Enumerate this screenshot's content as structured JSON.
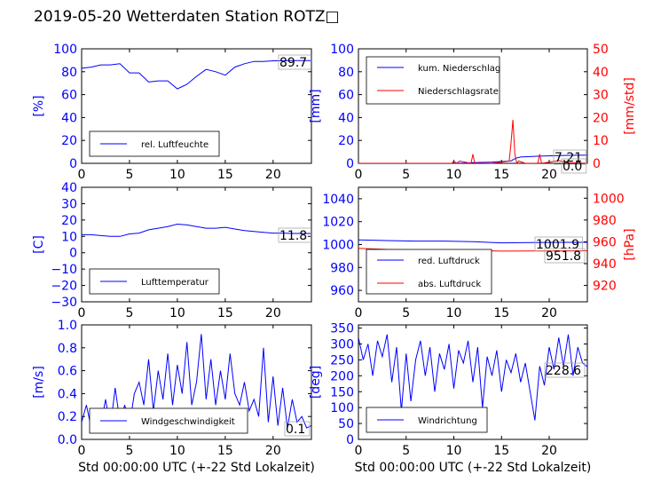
{
  "page": {
    "title": "2019-05-20 Wetterdaten Station ROTZ□"
  },
  "colors": {
    "axis_left": "#0000ff",
    "axis_right": "#ff0000",
    "series_blue": "#0000ff",
    "series_red": "#ff0000",
    "frame": "#000000"
  },
  "chart_data": [
    {
      "type": "line",
      "panel": "top-left",
      "xlim": [
        0,
        24
      ],
      "xticks": [
        "0",
        "5",
        "10",
        "15",
        "20"
      ],
      "ylabel": "[%]",
      "ylim": [
        0,
        100
      ],
      "yticks": [
        "0",
        "20",
        "40",
        "60",
        "80",
        "100"
      ],
      "legend": {
        "placement": "lower-left",
        "entries": [
          "rel. Luftfeuchte"
        ]
      },
      "annotations": [
        "89.7"
      ],
      "series": [
        {
          "name": "rel. Luftfeuchte",
          "color": "#0000ff",
          "axis": "left",
          "x": [
            0,
            1,
            2,
            3,
            4,
            5,
            6,
            7,
            8,
            9,
            10,
            11,
            12,
            13,
            14,
            15,
            16,
            17,
            18,
            19,
            20,
            21,
            22,
            23,
            24
          ],
          "values": [
            83,
            84,
            86,
            86,
            87,
            79,
            79,
            71,
            72,
            72,
            65,
            69,
            76,
            82,
            80,
            77,
            84,
            87,
            89,
            89,
            89.5,
            89.6,
            89.7,
            89.7,
            89.7
          ]
        }
      ]
    },
    {
      "type": "line",
      "panel": "top-right",
      "xlim": [
        0,
        24
      ],
      "xticks": [
        "0",
        "5",
        "10",
        "15",
        "20"
      ],
      "ylabel": "[mm]",
      "ylim": [
        0,
        100
      ],
      "yticks": [
        "0",
        "20",
        "40",
        "60",
        "80",
        "100"
      ],
      "ylabel_right": "[mm/std]",
      "ylim_right": [
        0,
        50
      ],
      "yticks_right": [
        "0",
        "10",
        "20",
        "30",
        "40",
        "50"
      ],
      "legend": {
        "placement": "top-left",
        "entries": [
          "kum. Niederschlag",
          "Niederschlagsrate"
        ]
      },
      "annotations": [
        "7.21",
        "0.0"
      ],
      "series": [
        {
          "name": "kum. Niederschlag",
          "color": "#0000ff",
          "axis": "left",
          "x": [
            0,
            10,
            11,
            12,
            14,
            16,
            16.5,
            17,
            19,
            22,
            24
          ],
          "values": [
            0,
            0,
            0.2,
            0.6,
            1.1,
            2.2,
            4.5,
            5.5,
            6.3,
            7.0,
            7.21
          ]
        },
        {
          "name": "Niederschlagsrate",
          "color": "#ff0000",
          "axis": "right",
          "x": [
            0,
            9.8,
            10,
            10.3,
            10.6,
            11.8,
            12,
            12.2,
            14,
            15.8,
            16,
            16.2,
            16.4,
            16.6,
            16.8,
            17.5,
            18.8,
            19,
            19.2,
            21,
            22,
            24
          ],
          "values": [
            0,
            0,
            1,
            0,
            1,
            0,
            4,
            0,
            0,
            1,
            9,
            19,
            4,
            0,
            1,
            0,
            0,
            4,
            0,
            1.2,
            0.3,
            0
          ]
        }
      ]
    },
    {
      "type": "line",
      "panel": "middle-left",
      "xlim": [
        0,
        24
      ],
      "xticks": [
        "0",
        "5",
        "10",
        "15",
        "20"
      ],
      "ylabel": "[C]",
      "ylim": [
        -30,
        40
      ],
      "yticks": [
        "−30",
        "−20",
        "−10",
        "0",
        "10",
        "20",
        "30",
        "40"
      ],
      "legend": {
        "placement": "lower-left",
        "entries": [
          "Lufttemperatur"
        ]
      },
      "annotations": [
        "11.8"
      ],
      "series": [
        {
          "name": "Lufttemperatur",
          "color": "#0000ff",
          "axis": "left",
          "x": [
            0,
            1,
            2,
            3,
            4,
            5,
            6,
            7,
            8,
            9,
            10,
            11,
            12,
            13,
            14,
            15,
            16,
            17,
            18,
            19,
            20,
            21,
            22,
            23,
            24
          ],
          "values": [
            11,
            11,
            10.5,
            10,
            10,
            11.5,
            12,
            14,
            15,
            16,
            17.5,
            17,
            16,
            15,
            15,
            15.5,
            14.5,
            13.5,
            13,
            12.5,
            12,
            12,
            11.8,
            11.8,
            11.8
          ]
        }
      ]
    },
    {
      "type": "line",
      "panel": "middle-right",
      "xlim": [
        0,
        24
      ],
      "xticks": [
        "0",
        "5",
        "10",
        "15",
        "20"
      ],
      "ylim": [
        950,
        1050
      ],
      "yticks": [
        "960",
        "980",
        "1000",
        "1020",
        "1040"
      ],
      "ylabel_right": "[hPa]",
      "ylim_right": [
        905,
        1010
      ],
      "yticks_right": [
        "920",
        "940",
        "960",
        "980",
        "1000"
      ],
      "legend": {
        "placement": "lower-left",
        "entries": [
          "red. Luftdruck",
          "abs. Luftdruck"
        ]
      },
      "annotations": [
        "1001.9",
        "951.8"
      ],
      "series": [
        {
          "name": "red. Luftdruck",
          "color": "#0000ff",
          "axis": "left",
          "x": [
            0,
            3,
            6,
            9,
            12,
            15,
            18,
            21,
            24
          ],
          "values": [
            1004,
            1003.5,
            1003,
            1003,
            1002.5,
            1001.5,
            1001.8,
            1001.9,
            1001.9
          ]
        },
        {
          "name": "abs. Luftdruck",
          "color": "#ff0000",
          "axis": "right",
          "x": [
            0,
            3,
            6,
            9,
            12,
            15,
            18,
            21,
            24
          ],
          "values": [
            954,
            953,
            952.5,
            952.3,
            952,
            951.5,
            951.6,
            951.8,
            951.8
          ]
        }
      ]
    },
    {
      "type": "line",
      "panel": "bottom-left",
      "xlim": [
        0,
        24
      ],
      "xticks": [
        "0",
        "5",
        "10",
        "15",
        "20"
      ],
      "xlabel": "Std 00:00:00 UTC (+-22 Std Lokalzeit)",
      "ylabel": "[m/s]",
      "ylim": [
        0,
        1.0
      ],
      "yticks": [
        "0.0",
        "0.2",
        "0.4",
        "0.6",
        "0.8",
        "1.0"
      ],
      "legend": {
        "placement": "lower-left",
        "entries": [
          "Windgeschwindigkeit"
        ]
      },
      "annotations": [
        "0.1"
      ],
      "series": [
        {
          "name": "Windgeschwindigkeit",
          "color": "#0000ff",
          "axis": "left",
          "x": [
            0,
            0.5,
            1,
            1.5,
            2,
            2.5,
            3,
            3.5,
            4,
            4.5,
            5,
            5.5,
            6,
            6.5,
            7,
            7.5,
            8,
            8.5,
            9,
            9.5,
            10,
            10.5,
            11,
            11.5,
            12,
            12.5,
            13,
            13.5,
            14,
            14.5,
            15,
            15.5,
            16,
            16.5,
            17,
            17.5,
            18,
            18.5,
            19,
            19.5,
            20,
            20.5,
            21,
            21.5,
            22,
            22.5,
            23,
            23.5,
            24
          ],
          "values": [
            0.15,
            0.3,
            0.1,
            0.25,
            0.12,
            0.35,
            0.1,
            0.45,
            0.15,
            0.3,
            0.12,
            0.4,
            0.5,
            0.3,
            0.7,
            0.25,
            0.6,
            0.35,
            0.75,
            0.3,
            0.65,
            0.4,
            0.85,
            0.3,
            0.5,
            0.92,
            0.35,
            0.7,
            0.3,
            0.6,
            0.35,
            0.75,
            0.4,
            0.3,
            0.5,
            0.25,
            0.35,
            0.2,
            0.8,
            0.15,
            0.55,
            0.12,
            0.45,
            0.1,
            0.35,
            0.15,
            0.2,
            0.1,
            0.12
          ]
        }
      ]
    },
    {
      "type": "line",
      "panel": "bottom-right",
      "xlim": [
        0,
        24
      ],
      "xticks": [
        "0",
        "5",
        "10",
        "15",
        "20"
      ],
      "xlabel": "Std 00:00:00 UTC (+-22 Std Lokalzeit)",
      "ylabel": "[deg]",
      "ylim": [
        0,
        360
      ],
      "yticks": [
        "0",
        "50",
        "100",
        "150",
        "200",
        "250",
        "300",
        "350"
      ],
      "legend": {
        "placement": "lower-left",
        "entries": [
          "Windrichtung"
        ]
      },
      "annotations": [
        "228.6"
      ],
      "series": [
        {
          "name": "Windrichtung",
          "color": "#0000ff",
          "axis": "left",
          "x": [
            0,
            0.5,
            1,
            1.5,
            2,
            2.5,
            3,
            3.5,
            4,
            4.5,
            5,
            5.5,
            6,
            6.5,
            7,
            7.5,
            8,
            8.5,
            9,
            9.5,
            10,
            10.5,
            11,
            11.5,
            12,
            12.5,
            13,
            13.5,
            14,
            14.5,
            15,
            15.5,
            16,
            16.5,
            17,
            17.5,
            18,
            18.5,
            19,
            19.5,
            20,
            20.5,
            21,
            21.5,
            22,
            22.5,
            23,
            23.5,
            24
          ],
          "values": [
            320,
            250,
            300,
            200,
            310,
            260,
            330,
            180,
            290,
            90,
            270,
            120,
            250,
            310,
            200,
            290,
            150,
            270,
            220,
            300,
            160,
            280,
            240,
            310,
            180,
            290,
            100,
            260,
            200,
            280,
            150,
            250,
            210,
            270,
            180,
            240,
            150,
            60,
            230,
            170,
            290,
            220,
            320,
            230,
            330,
            200,
            290,
            240,
            228.6
          ]
        }
      ]
    }
  ]
}
